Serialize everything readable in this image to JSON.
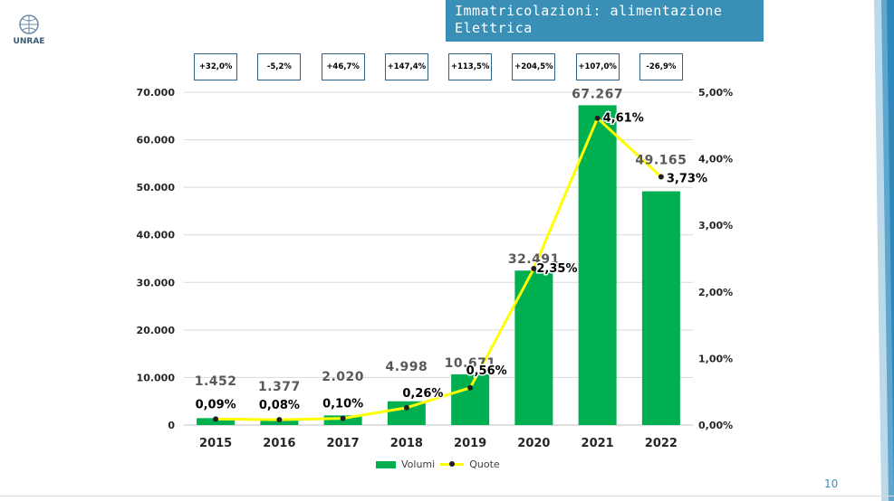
{
  "header": {
    "title": "Immatricolazioni: alimentazione Elettrica"
  },
  "logo": {
    "text": "UNRAE"
  },
  "footer": {
    "page_number": "10"
  },
  "colors": {
    "bar": "#00b050",
    "line": "#ffff00",
    "marker": "#1f1f1f",
    "title_bg": "#3a8fb7",
    "box_border": "#2e5f85"
  },
  "changes": [
    "+32,0%",
    "-5,2%",
    "+46,7%",
    "+147,4%",
    "+113,5%",
    "+204,5%",
    "+107,0%",
    "-26,9%"
  ],
  "chart_data": {
    "type": "bar",
    "categories": [
      "2015",
      "2016",
      "2017",
      "2018",
      "2019",
      "2020",
      "2021",
      "2022"
    ],
    "series": [
      {
        "name": "Volumi",
        "type": "bar",
        "axis": "left",
        "values": [
          1452,
          1377,
          2020,
          4998,
          10671,
          32491,
          67267,
          49165
        ],
        "labels": [
          "1.452",
          "1.377",
          "2.020",
          "4.998",
          "10.671",
          "32.491",
          "67.267",
          "49.165"
        ]
      },
      {
        "name": "Quote",
        "type": "line",
        "axis": "right",
        "values": [
          0.09,
          0.08,
          0.1,
          0.26,
          0.56,
          2.35,
          4.61,
          3.73
        ],
        "labels": [
          "0,09%",
          "0,08%",
          "0,10%",
          "0,26%",
          "0,56%",
          "2,35%",
          "4,61%",
          "3,73%"
        ]
      }
    ],
    "y_left": {
      "min": 0,
      "max": 70000,
      "ticks": [
        "0",
        "10.000",
        "20.000",
        "30.000",
        "40.000",
        "50.000",
        "60.000",
        "70.000"
      ]
    },
    "y_right": {
      "min": 0,
      "max": 5,
      "ticks": [
        "0,00%",
        "1,00%",
        "2,00%",
        "3,00%",
        "4,00%",
        "5,00%"
      ]
    },
    "grid": true,
    "legend": "bottom"
  }
}
